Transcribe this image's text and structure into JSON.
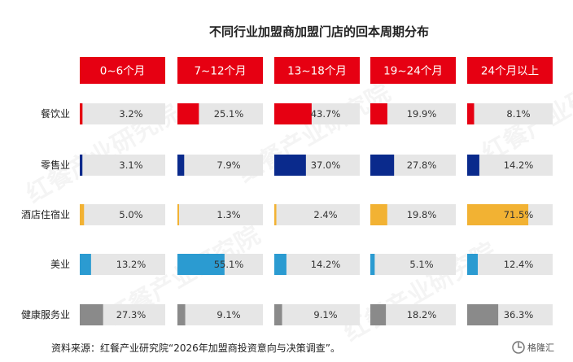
{
  "chart_data": {
    "type": "bar",
    "title": "不同行业加盟商加盟门店的回本周期分布",
    "categories": [
      "0~6个月",
      "7~12个月",
      "13~18个月",
      "19~24个月",
      "24个月以上"
    ],
    "series": [
      {
        "name": "餐饮业",
        "values": [
          3.2,
          25.1,
          43.7,
          19.9,
          8.1
        ],
        "color": "#e60012"
      },
      {
        "name": "零售业",
        "values": [
          3.1,
          7.9,
          37.0,
          27.8,
          14.2
        ],
        "color": "#0a2a8c"
      },
      {
        "name": "酒店住宿业",
        "values": [
          5.0,
          1.3,
          2.4,
          19.8,
          71.5
        ],
        "color": "#f2b233"
      },
      {
        "name": "美业",
        "values": [
          13.2,
          55.1,
          14.2,
          5.1,
          12.4
        ],
        "color": "#2b9bd1"
      },
      {
        "name": "健康服务业",
        "values": [
          27.3,
          9.1,
          9.1,
          18.2,
          36.3
        ],
        "color": "#8a8a8a"
      }
    ],
    "value_labels": [
      [
        "3.2%",
        "25.1%",
        "43.7%",
        "19.9%",
        "8.1%"
      ],
      [
        "3.1%",
        "7.9%",
        "37.0%",
        "27.8%",
        "14.2%"
      ],
      [
        "5.0%",
        "1.3%",
        "2.4%",
        "19.8%",
        "71.5%"
      ],
      [
        "13.2%",
        "55.1%",
        "14.2%",
        "5.1%",
        "12.4%"
      ],
      [
        "27.3%",
        "9.1%",
        "9.1%",
        "18.2%",
        "36.3%"
      ]
    ],
    "unit": "%",
    "ylim": [
      0,
      100
    ],
    "header_color": "#e60012",
    "track_color": "#e6e6e6",
    "grid": false,
    "legend": "none"
  },
  "source_note": "资料来源：红餐产业研究院“2026年加盟商投资意向与决策调查”。",
  "watermark": {
    "text": "红餐产业研究院",
    "icon": "gelonghui-logo-icon",
    "logo_text": "格隆汇"
  }
}
